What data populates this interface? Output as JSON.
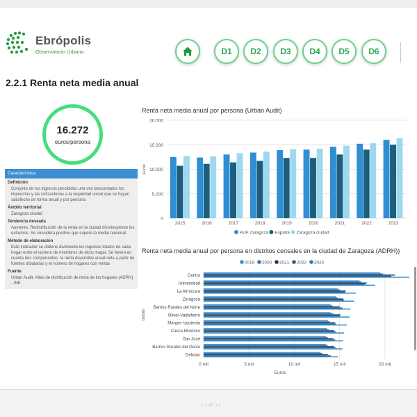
{
  "brand": {
    "name": "Ebrópolis",
    "subtitle": "Observatorio Urbano"
  },
  "nav": {
    "buttons": [
      "D1",
      "D2",
      "D3",
      "D4",
      "D5",
      "D6"
    ]
  },
  "page": {
    "title": "2.2.1 Renta neta media anual"
  },
  "kpi": {
    "value": "16.272",
    "unit": "euros/persona"
  },
  "info": {
    "header": "Característica",
    "sections": [
      {
        "title": "Definición",
        "text": "Conjunto de los ingresos percibidos una vez descontados los impuestos y las cotizaciones a la seguridad social que se hayan satisfecho de forma anual y por persona"
      },
      {
        "title": "Ámbito territorial",
        "text": "Zaragoza ciudad"
      },
      {
        "title": "Tendencia deseada",
        "text": "Aumento. Redistribución de la renta en la ciudad disminuyendo los extremos. Se considera positivo que supere la media nacional"
      },
      {
        "title": "Método de elaboración",
        "text": "Este indicador se obtiene dividiendo los ingresos totales de cada hogar entre el número de miembros de dicho hogar. Se tienen en cuenta dos componentes: la renta disponible anual neta a partir de fuentes tributarias y el número de hogares con rentas"
      },
      {
        "title": "Fuente",
        "text": "Urban Audit. Atlas de distribución de renta de los hogares (ADRH) - INE"
      }
    ]
  },
  "colors": {
    "accent": "#47dd7c",
    "brand_green": "#2a9d44",
    "bar_dark": "#1b5e7e",
    "bar_mid": "#2f8fd3",
    "bar_light": "#9dd8f0"
  },
  "chart_data": [
    {
      "type": "bar",
      "title": "Renta neta media anual por persona (Urban Audit)",
      "ylabel": "Euros",
      "ylim": [
        0,
        20000
      ],
      "yticks": [
        "0",
        "5.000",
        "10.000",
        "15.000",
        "20.000"
      ],
      "categories": [
        "2015",
        "2016",
        "2017",
        "2018",
        "2019",
        "2020",
        "2021",
        "2022",
        "2023"
      ],
      "series": [
        {
          "name": "AUF Zaragoza",
          "color": "#2f8fd3",
          "values": [
            12500,
            12400,
            13000,
            13400,
            13900,
            14000,
            14600,
            15200,
            16000
          ]
        },
        {
          "name": "España",
          "color": "#1b5e7e",
          "values": [
            10700,
            11100,
            11400,
            11700,
            12300,
            12300,
            13000,
            14000,
            15000
          ]
        },
        {
          "name": "Zaragoza ciudad",
          "color": "#9dd8f0",
          "values": [
            12700,
            12600,
            13300,
            13600,
            14100,
            14200,
            14800,
            15300,
            16300
          ]
        }
      ],
      "legend": "bottom"
    },
    {
      "type": "bar",
      "orientation": "horizontal",
      "title": "Renta neta media anual por persona en distritos censales en la ciudad de Zaragoza (ADRH))",
      "xlabel": "Euros",
      "ylabel": "Distrito",
      "xlim": [
        0,
        23000
      ],
      "xticks": [
        "0 mil",
        "5 mil",
        "10 mil",
        "15 mil",
        "20 mil"
      ],
      "categories": [
        "Centro",
        "Universidad",
        "La Almozara",
        "Zaragoza",
        "Barrios Rurales del Norte",
        "Oliver-Valdefierro",
        "Margen Izquierda",
        "Casco Histórico",
        "San José",
        "Barrios Rurales del Oeste",
        "Delicias"
      ],
      "series": [
        {
          "name": "2019",
          "color": "#2f8fd3",
          "values": [
            19500,
            17200,
            14800,
            14600,
            14000,
            14000,
            13700,
            13600,
            13500,
            13500,
            12900
          ]
        },
        {
          "name": "2020",
          "color": "#3b6ea8",
          "values": [
            19800,
            17400,
            15000,
            14800,
            14200,
            14300,
            13900,
            13800,
            13700,
            13700,
            13100
          ]
        },
        {
          "name": "2021",
          "color": "#123a5e",
          "values": [
            21100,
            18000,
            15700,
            15400,
            15000,
            15100,
            14500,
            14400,
            14300,
            14400,
            13700
          ]
        },
        {
          "name": "2022",
          "color": "#2b5b8a",
          "values": [
            20700,
            17800,
            15600,
            15500,
            15300,
            15000,
            14600,
            14600,
            14500,
            14600,
            14000
          ]
        },
        {
          "name": "2023",
          "color": "#1f83c0",
          "values": [
            22700,
            18900,
            16800,
            16600,
            16200,
            16100,
            15800,
            15500,
            15400,
            15300,
            14800
          ]
        }
      ],
      "legend": "top"
    }
  ],
  "status": {
    "text": "· · · ⁄ · · ·"
  }
}
